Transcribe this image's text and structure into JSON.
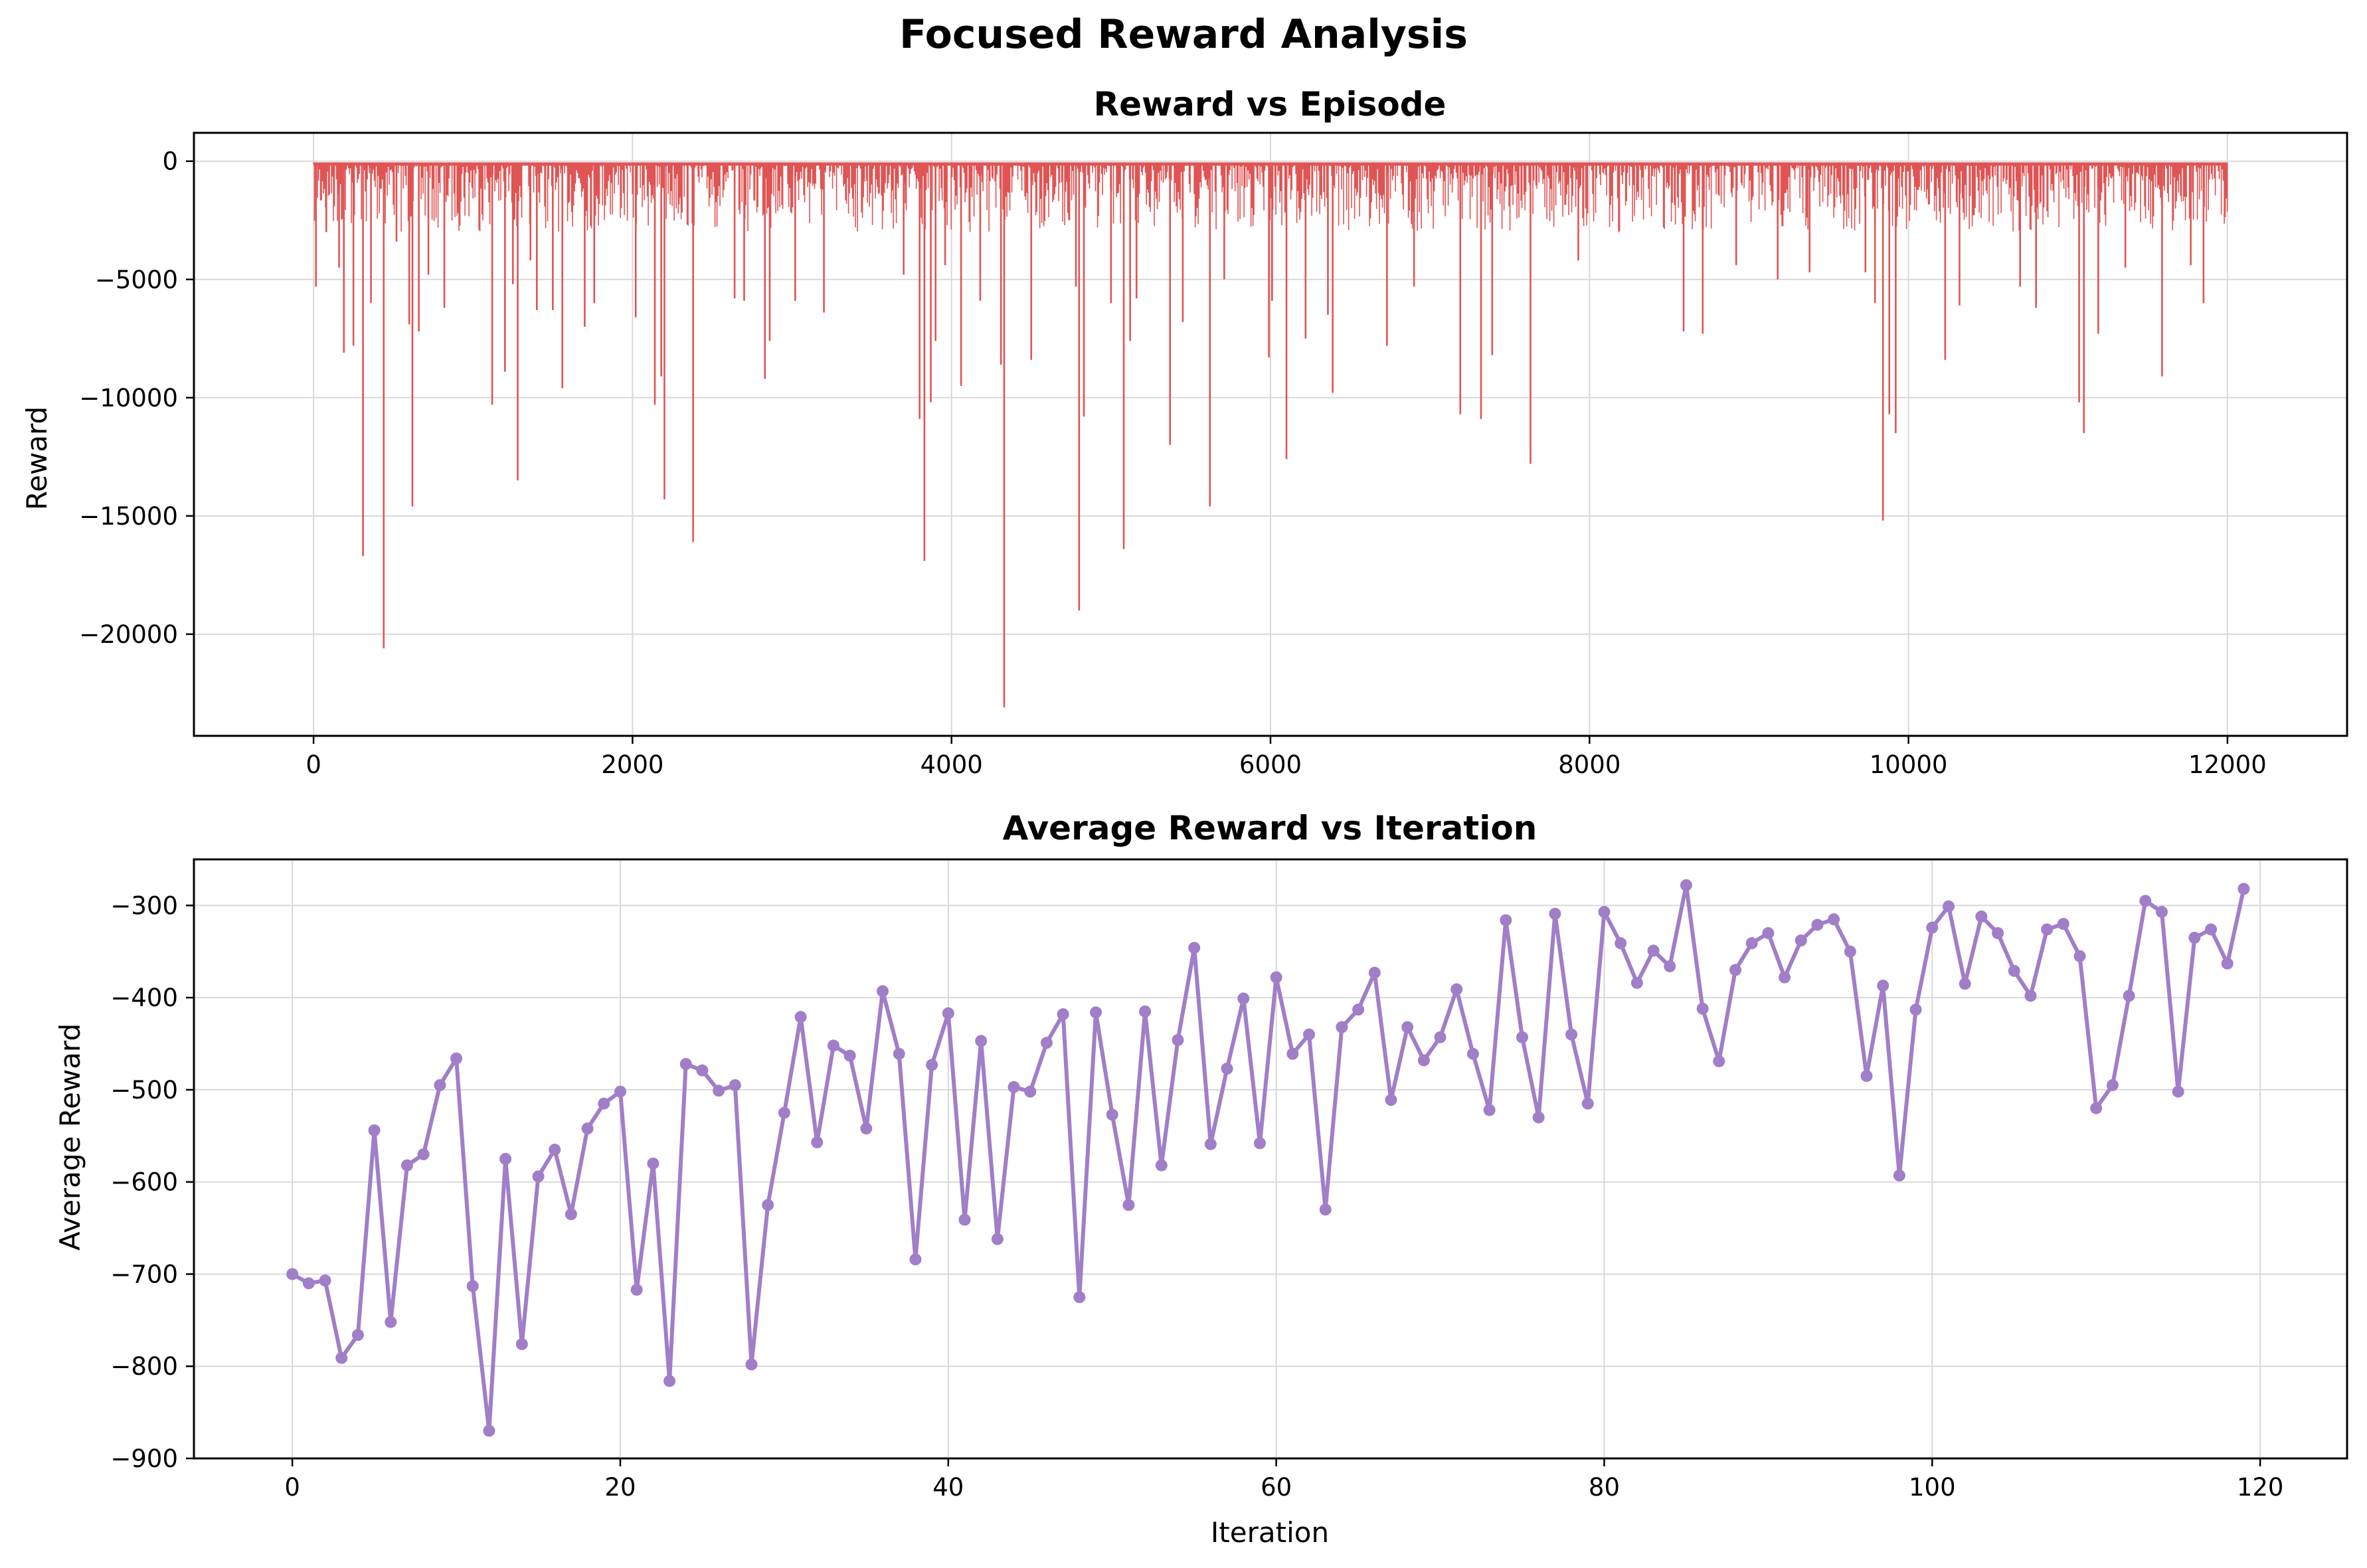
{
  "figure": {
    "title": "Focused Reward Analysis"
  },
  "colors": {
    "episode_line": "#e05454",
    "avg_line": "#a07ec8",
    "grid": "#d9d9d9"
  },
  "chart_data": [
    {
      "type": "line",
      "title": "Reward vs Episode",
      "xlabel": "",
      "ylabel": "Reward",
      "xlim": [
        -750,
        12750
      ],
      "ylim": [
        -24300,
        1200
      ],
      "xticks": [
        0,
        2000,
        4000,
        6000,
        8000,
        10000,
        12000
      ],
      "xtick_labels": [
        "0",
        "2000",
        "4000",
        "6000",
        "8000",
        "10000",
        "12000"
      ],
      "yticks": [
        0,
        -5000,
        -10000,
        -15000,
        -20000
      ],
      "ytick_labels": [
        "0",
        "−5000",
        "−10000",
        "−15000",
        "−20000"
      ],
      "grid": true,
      "x_range": [
        0,
        12000
      ],
      "typical_range": [
        -3000,
        -100
      ],
      "spikes": [
        [
          15,
          -5300
        ],
        [
          80,
          -3000
        ],
        [
          160,
          -4500
        ],
        [
          190,
          -8100
        ],
        [
          250,
          -7800
        ],
        [
          310,
          -16700
        ],
        [
          360,
          -6000
        ],
        [
          440,
          -20600
        ],
        [
          520,
          -3400
        ],
        [
          600,
          -6900
        ],
        [
          620,
          -14600
        ],
        [
          660,
          -7200
        ],
        [
          720,
          -4800
        ],
        [
          820,
          -6200
        ],
        [
          1120,
          -10300
        ],
        [
          1200,
          -8900
        ],
        [
          1250,
          -5200
        ],
        [
          1280,
          -13500
        ],
        [
          1360,
          -4200
        ],
        [
          1400,
          -6300
        ],
        [
          1500,
          -6300
        ],
        [
          1560,
          -9600
        ],
        [
          1700,
          -7000
        ],
        [
          1760,
          -6000
        ],
        [
          2020,
          -6600
        ],
        [
          2140,
          -10300
        ],
        [
          2180,
          -9100
        ],
        [
          2200,
          -14300
        ],
        [
          2380,
          -16100
        ],
        [
          2640,
          -5800
        ],
        [
          2700,
          -5900
        ],
        [
          2830,
          -9200
        ],
        [
          2860,
          -7600
        ],
        [
          3020,
          -5900
        ],
        [
          3200,
          -6400
        ],
        [
          3700,
          -4800
        ],
        [
          3800,
          -10900
        ],
        [
          3830,
          -16900
        ],
        [
          3870,
          -10200
        ],
        [
          3900,
          -7600
        ],
        [
          3960,
          -4400
        ],
        [
          4060,
          -9500
        ],
        [
          4180,
          -5900
        ],
        [
          4310,
          -8600
        ],
        [
          4330,
          -23100
        ],
        [
          4500,
          -8400
        ],
        [
          4780,
          -5300
        ],
        [
          4800,
          -19000
        ],
        [
          4830,
          -10800
        ],
        [
          5000,
          -6000
        ],
        [
          5080,
          -16400
        ],
        [
          5120,
          -7600
        ],
        [
          5160,
          -5800
        ],
        [
          5370,
          -12000
        ],
        [
          5450,
          -6800
        ],
        [
          5620,
          -14600
        ],
        [
          5710,
          -5000
        ],
        [
          5990,
          -8300
        ],
        [
          6010,
          -5900
        ],
        [
          6100,
          -12600
        ],
        [
          6220,
          -7500
        ],
        [
          6360,
          -6500
        ],
        [
          6390,
          -9800
        ],
        [
          6730,
          -7800
        ],
        [
          6900,
          -5300
        ],
        [
          7190,
          -10700
        ],
        [
          7320,
          -10900
        ],
        [
          7390,
          -8200
        ],
        [
          7630,
          -12800
        ],
        [
          7930,
          -4200
        ],
        [
          8590,
          -7200
        ],
        [
          8710,
          -7300
        ],
        [
          8920,
          -4400
        ],
        [
          9180,
          -5000
        ],
        [
          9380,
          -4700
        ],
        [
          9730,
          -4700
        ],
        [
          9790,
          -6000
        ],
        [
          9840,
          -15200
        ],
        [
          9880,
          -10700
        ],
        [
          9920,
          -11500
        ],
        [
          10230,
          -8400
        ],
        [
          10320,
          -6100
        ],
        [
          10700,
          -5300
        ],
        [
          10800,
          -6200
        ],
        [
          11070,
          -10200
        ],
        [
          11100,
          -11500
        ],
        [
          11190,
          -7300
        ],
        [
          11360,
          -4500
        ],
        [
          11590,
          -9100
        ],
        [
          11770,
          -4400
        ],
        [
          11850,
          -6000
        ]
      ]
    },
    {
      "type": "line",
      "title": "Average Reward vs Iteration",
      "xlabel": "Iteration",
      "ylabel": "Average Reward",
      "xlim": [
        -6,
        125.3
      ],
      "ylim": [
        -900,
        -250
      ],
      "xticks": [
        0,
        20,
        40,
        60,
        80,
        100,
        120
      ],
      "xtick_labels": [
        "0",
        "20",
        "40",
        "60",
        "80",
        "100",
        "120"
      ],
      "yticks": [
        -300,
        -400,
        -500,
        -600,
        -700,
        -800,
        -900
      ],
      "ytick_labels": [
        "−300",
        "−400",
        "−500",
        "−600",
        "−700",
        "−800",
        "−900"
      ],
      "grid": true,
      "x": [
        0,
        1,
        2,
        3,
        4,
        5,
        6,
        7,
        8,
        9,
        10,
        11,
        12,
        13,
        14,
        15,
        16,
        17,
        18,
        19,
        20,
        21,
        22,
        23,
        24,
        25,
        26,
        27,
        28,
        29,
        30,
        31,
        32,
        33,
        34,
        35,
        36,
        37,
        38,
        39,
        40,
        41,
        42,
        43,
        44,
        45,
        46,
        47,
        48,
        49,
        50,
        51,
        52,
        53,
        54,
        55,
        56,
        57,
        58,
        59,
        60,
        61,
        62,
        63,
        64,
        65,
        66,
        67,
        68,
        69,
        70,
        71,
        72,
        73,
        74,
        75,
        76,
        77,
        78,
        79,
        80,
        81,
        82,
        83,
        84,
        85,
        86,
        87,
        88,
        89,
        90,
        91,
        92,
        93,
        94,
        95,
        96,
        97,
        98,
        99,
        100,
        101,
        102,
        103,
        104,
        105,
        106,
        107,
        108,
        109,
        110,
        111,
        112,
        113,
        114,
        115,
        116,
        117,
        118,
        119
      ],
      "y": [
        -700,
        -710,
        -707,
        -791,
        -766,
        -544,
        -752,
        -582,
        -570,
        -495,
        -466,
        -713,
        -870,
        -575,
        -776,
        -594,
        -565,
        -635,
        -542,
        -515,
        -502,
        -717,
        -580,
        -816,
        -472,
        -479,
        -501,
        -495,
        -798,
        -625,
        -525,
        -421,
        -557,
        -452,
        -463,
        -542,
        -393,
        -461,
        -684,
        -473,
        -417,
        -641,
        -447,
        -662,
        -497,
        -502,
        -449,
        -418,
        -725,
        -416,
        -527,
        -625,
        -415,
        -582,
        -446,
        -346,
        -559,
        -477,
        -401,
        -558,
        -378,
        -461,
        -440,
        -630,
        -432,
        -413,
        -373,
        -511,
        -432,
        -468,
        -443,
        -391,
        -461,
        -522,
        -316,
        -443,
        -530,
        -309,
        -440,
        -515,
        -307,
        -341,
        -384,
        -349,
        -366,
        -278,
        -412,
        -469,
        -370,
        -341,
        -330,
        -378,
        -338,
        -321,
        -315,
        -350,
        -485,
        -387,
        -593,
        -413,
        -324,
        -301,
        -385,
        -312,
        -330,
        -371,
        -398,
        -326,
        -320,
        -355,
        -520,
        -495,
        -398,
        -295,
        -307,
        -502,
        -335,
        -326,
        -363,
        -282
      ]
    }
  ]
}
